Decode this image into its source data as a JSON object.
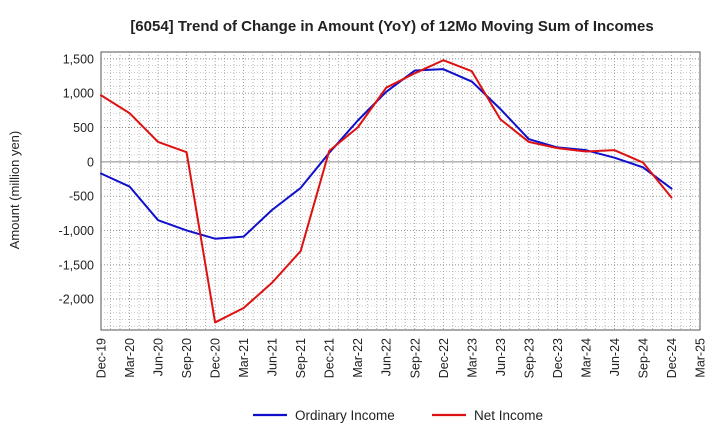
{
  "chart_data": {
    "type": "line",
    "title": "[6054]  Trend of Change in Amount (YoY) of 12Mo Moving Sum of Incomes",
    "xlabel": "",
    "ylabel": "Amount (million yen)",
    "ylim": [
      -2450,
      1600
    ],
    "yticks": [
      1500,
      1000,
      500,
      0,
      -500,
      -1000,
      -1500,
      -2000
    ],
    "ytick_labels": [
      "1,500",
      "1,000",
      "500",
      "0",
      "-500",
      "-1,000",
      "-1,500",
      "-2,000"
    ],
    "categories": [
      "Dec-19",
      "Mar-20",
      "Jun-20",
      "Sep-20",
      "Dec-20",
      "Mar-21",
      "Jun-21",
      "Sep-21",
      "Dec-21",
      "Mar-22",
      "Jun-22",
      "Sep-22",
      "Dec-22",
      "Mar-23",
      "Jun-23",
      "Sep-23",
      "Dec-23",
      "Mar-24",
      "Jun-24",
      "Sep-24",
      "Dec-24",
      "Mar-25"
    ],
    "grid": true,
    "legend": "bottom-center",
    "series": [
      {
        "name": "Ordinary Income",
        "color": "#1010cc",
        "values": [
          -170,
          -360,
          -850,
          -1000,
          -1120,
          -1090,
          -700,
          -380,
          130,
          600,
          1020,
          1330,
          1350,
          1170,
          770,
          330,
          210,
          170,
          60,
          -80,
          -390,
          null
        ]
      },
      {
        "name": "Net Income",
        "color": "#dd1111",
        "values": [
          970,
          710,
          290,
          140,
          -2340,
          -2130,
          -1760,
          -1300,
          160,
          500,
          1080,
          1290,
          1480,
          1320,
          620,
          290,
          200,
          150,
          170,
          -10,
          -520,
          null
        ]
      }
    ]
  }
}
